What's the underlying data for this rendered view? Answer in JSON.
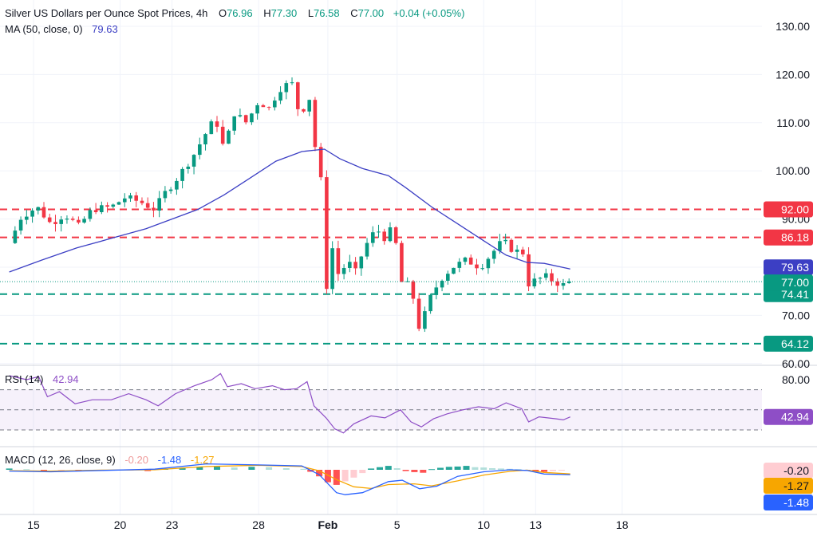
{
  "header": {
    "title": "Silver US Dollars per Ounce Spot Prices, 4h",
    "o_label": "O",
    "o_value": "76.96",
    "h_label": "H",
    "h_value": "77.30",
    "l_label": "L",
    "l_value": "76.58",
    "c_label": "C",
    "c_value": "77.00",
    "change": "+0.04 (+0.05%)",
    "ma_label": "MA (50, close, 0)",
    "ma_value": "79.63"
  },
  "rsi_header": {
    "label": "RSI (14)",
    "value": "42.94"
  },
  "macd_header": {
    "label": "MACD (12, 26, close, 9)",
    "hist": "-0.20",
    "macd": "-1.48",
    "signal": "-1.27"
  },
  "colors": {
    "up": "#089981",
    "down": "#f23645",
    "ma": "#3c3fc4",
    "rsi": "#8e4ec6",
    "macd": "#2962ff",
    "signal": "#f7a600",
    "hline_red": "#f23645",
    "hline_green": "#089981",
    "grid": "#f0f3fa"
  },
  "chart_data": [
    {
      "type": "candlestick",
      "title": "Silver US Dollars per Ounce Spot Prices, 4h",
      "ylim": [
        60,
        130
      ],
      "y_ticks": [
        "130.00",
        "120.00",
        "110.00",
        "100.00",
        "90.00",
        "80.00",
        "70.00",
        "60.00"
      ],
      "y_tick_values": [
        130,
        120,
        110,
        100,
        90,
        80,
        70,
        60
      ],
      "x_ticks": [
        {
          "label": "15",
          "t": 15
        },
        {
          "label": "20",
          "t": 20
        },
        {
          "label": "23",
          "t": 23
        },
        {
          "label": "28",
          "t": 28
        },
        {
          "label": "Feb",
          "t": 32
        },
        {
          "label": "5",
          "t": 36
        },
        {
          "label": "10",
          "t": 41
        },
        {
          "label": "13",
          "t": 44
        },
        {
          "label": "18",
          "t": 49
        }
      ],
      "horizontal_levels": [
        {
          "label": "92.00",
          "value": 92.0,
          "color": "red"
        },
        {
          "label": "86.18",
          "value": 86.18,
          "color": "red"
        },
        {
          "label": "74.41",
          "value": 74.41,
          "color": "green"
        },
        {
          "label": "64.12",
          "value": 64.12,
          "color": "green"
        }
      ],
      "price_tags": [
        {
          "label": "79.63",
          "value": 79.63,
          "kind": "ma"
        },
        {
          "label": "77.00",
          "value": 77.0,
          "kind": "last"
        }
      ],
      "close_path": [
        {
          "t": 13.6,
          "v": 85.0
        },
        {
          "t": 14.3,
          "v": 90.5
        },
        {
          "t": 15.2,
          "v": 92.5
        },
        {
          "t": 16.0,
          "v": 89.0
        },
        {
          "t": 16.8,
          "v": 91.0
        },
        {
          "t": 17.6,
          "v": 88.5
        },
        {
          "t": 18.4,
          "v": 92.0
        },
        {
          "t": 19.5,
          "v": 92.5
        },
        {
          "t": 20.3,
          "v": 94.5
        },
        {
          "t": 21.2,
          "v": 93.5
        },
        {
          "t": 22.0,
          "v": 92.0
        },
        {
          "t": 22.5,
          "v": 95.0
        },
        {
          "t": 23.3,
          "v": 98.5
        },
        {
          "t": 24.2,
          "v": 103.0
        },
        {
          "t": 24.9,
          "v": 107.5
        },
        {
          "t": 25.5,
          "v": 111.0
        },
        {
          "t": 26.0,
          "v": 104.5
        },
        {
          "t": 26.6,
          "v": 112.0
        },
        {
          "t": 27.3,
          "v": 110.0
        },
        {
          "t": 28.0,
          "v": 114.5
        },
        {
          "t": 28.6,
          "v": 113.0
        },
        {
          "t": 29.2,
          "v": 117.0
        },
        {
          "t": 29.9,
          "v": 118.5
        },
        {
          "t": 30.4,
          "v": 111.0
        },
        {
          "t": 30.9,
          "v": 116.0
        },
        {
          "t": 31.3,
          "v": 104.0
        },
        {
          "t": 31.7,
          "v": 96.0
        },
        {
          "t": 31.95,
          "v": 74.5
        },
        {
          "t": 32.3,
          "v": 85.0
        },
        {
          "t": 32.7,
          "v": 76.5
        },
        {
          "t": 33.1,
          "v": 82.5
        },
        {
          "t": 33.5,
          "v": 78.0
        },
        {
          "t": 34.1,
          "v": 84.0
        },
        {
          "t": 34.8,
          "v": 88.0
        },
        {
          "t": 35.3,
          "v": 86.0
        },
        {
          "t": 35.8,
          "v": 88.5
        },
        {
          "t": 36.2,
          "v": 77.0
        },
        {
          "t": 36.8,
          "v": 76.0
        },
        {
          "t": 37.3,
          "v": 67.0
        },
        {
          "t": 37.9,
          "v": 73.5
        },
        {
          "t": 38.5,
          "v": 77.5
        },
        {
          "t": 39.2,
          "v": 80.0
        },
        {
          "t": 40.0,
          "v": 81.5
        },
        {
          "t": 40.8,
          "v": 80.0
        },
        {
          "t": 41.5,
          "v": 83.0
        },
        {
          "t": 42.1,
          "v": 85.5
        },
        {
          "t": 42.7,
          "v": 83.5
        },
        {
          "t": 43.3,
          "v": 83.0
        },
        {
          "t": 43.6,
          "v": 76.5
        },
        {
          "t": 44.1,
          "v": 77.5
        },
        {
          "t": 44.6,
          "v": 78.0
        },
        {
          "t": 45.1,
          "v": 77.0
        },
        {
          "t": 45.6,
          "v": 76.3
        },
        {
          "t": 46.0,
          "v": 77.0
        }
      ],
      "ma_path": [
        {
          "t": 13.6,
          "v": 79.0
        },
        {
          "t": 15.5,
          "v": 81.5
        },
        {
          "t": 17.5,
          "v": 84.0
        },
        {
          "t": 19.5,
          "v": 86.0
        },
        {
          "t": 21.5,
          "v": 88.0
        },
        {
          "t": 23.0,
          "v": 90.0
        },
        {
          "t": 24.5,
          "v": 92.0
        },
        {
          "t": 26.0,
          "v": 95.0
        },
        {
          "t": 27.5,
          "v": 98.5
        },
        {
          "t": 29.0,
          "v": 102.0
        },
        {
          "t": 30.5,
          "v": 104.0
        },
        {
          "t": 31.8,
          "v": 104.5
        },
        {
          "t": 32.7,
          "v": 102.5
        },
        {
          "t": 34.0,
          "v": 100.5
        },
        {
          "t": 35.5,
          "v": 99.0
        },
        {
          "t": 36.5,
          "v": 96.5
        },
        {
          "t": 38.0,
          "v": 92.5
        },
        {
          "t": 39.5,
          "v": 89.0
        },
        {
          "t": 41.0,
          "v": 85.5
        },
        {
          "t": 42.3,
          "v": 82.5
        },
        {
          "t": 43.5,
          "v": 81.0
        },
        {
          "t": 44.5,
          "v": 80.8
        },
        {
          "t": 46.0,
          "v": 79.63
        }
      ]
    },
    {
      "type": "line",
      "title": "RSI (14)",
      "ylim": [
        20,
        100
      ],
      "y_ticks": [
        "80.00"
      ],
      "levels": [
        70,
        50,
        30
      ],
      "last_value": "42.94",
      "path": [
        {
          "t": 13.6,
          "v": 84
        },
        {
          "t": 14.6,
          "v": 80
        },
        {
          "t": 15.3,
          "v": 83
        },
        {
          "t": 15.8,
          "v": 63
        },
        {
          "t": 16.5,
          "v": 68
        },
        {
          "t": 17.4,
          "v": 56
        },
        {
          "t": 18.4,
          "v": 60
        },
        {
          "t": 19.5,
          "v": 60
        },
        {
          "t": 20.5,
          "v": 66
        },
        {
          "t": 21.5,
          "v": 60
        },
        {
          "t": 22.2,
          "v": 54
        },
        {
          "t": 23.2,
          "v": 66
        },
        {
          "t": 24.3,
          "v": 74
        },
        {
          "t": 25.3,
          "v": 80
        },
        {
          "t": 25.8,
          "v": 86
        },
        {
          "t": 26.2,
          "v": 73
        },
        {
          "t": 27.0,
          "v": 76
        },
        {
          "t": 27.8,
          "v": 71
        },
        {
          "t": 28.8,
          "v": 74
        },
        {
          "t": 29.5,
          "v": 70
        },
        {
          "t": 30.2,
          "v": 71
        },
        {
          "t": 30.8,
          "v": 78
        },
        {
          "t": 31.2,
          "v": 54
        },
        {
          "t": 31.9,
          "v": 42
        },
        {
          "t": 32.4,
          "v": 31
        },
        {
          "t": 32.9,
          "v": 27
        },
        {
          "t": 33.5,
          "v": 36
        },
        {
          "t": 34.5,
          "v": 44
        },
        {
          "t": 35.3,
          "v": 42
        },
        {
          "t": 36.2,
          "v": 50
        },
        {
          "t": 36.8,
          "v": 38
        },
        {
          "t": 37.4,
          "v": 33
        },
        {
          "t": 38.1,
          "v": 41
        },
        {
          "t": 38.9,
          "v": 46
        },
        {
          "t": 39.8,
          "v": 50
        },
        {
          "t": 40.7,
          "v": 53
        },
        {
          "t": 41.6,
          "v": 51
        },
        {
          "t": 42.3,
          "v": 57
        },
        {
          "t": 43.2,
          "v": 51
        },
        {
          "t": 43.6,
          "v": 38
        },
        {
          "t": 44.2,
          "v": 43
        },
        {
          "t": 45.2,
          "v": 41
        },
        {
          "t": 45.6,
          "v": 40
        },
        {
          "t": 46.0,
          "v": 42.94
        }
      ]
    },
    {
      "type": "bar",
      "title": "MACD (12, 26, close, 9)",
      "ylim": [
        -9,
        4
      ],
      "tags": [
        "-0.20",
        "-1.27",
        "-1.48"
      ],
      "histogram": [
        {
          "t": 13.6,
          "v": 0.4
        },
        {
          "t": 14.6,
          "v": 0.2
        },
        {
          "t": 15.6,
          "v": -0.3
        },
        {
          "t": 16.6,
          "v": -0.2
        },
        {
          "t": 17.6,
          "v": -0.5
        },
        {
          "t": 18.6,
          "v": -0.3
        },
        {
          "t": 19.6,
          "v": -0.2
        },
        {
          "t": 20.6,
          "v": -0.1
        },
        {
          "t": 21.6,
          "v": -0.4
        },
        {
          "t": 22.6,
          "v": 0.3
        },
        {
          "t": 23.6,
          "v": 0.6
        },
        {
          "t": 24.6,
          "v": 0.9
        },
        {
          "t": 25.6,
          "v": 1.1
        },
        {
          "t": 26.6,
          "v": 0.7
        },
        {
          "t": 27.6,
          "v": 0.9
        },
        {
          "t": 28.6,
          "v": 0.8
        },
        {
          "t": 29.6,
          "v": 0.5
        },
        {
          "t": 30.6,
          "v": 0.3
        },
        {
          "t": 31.0,
          "v": -0.6
        },
        {
          "t": 31.5,
          "v": -2.0
        },
        {
          "t": 32.0,
          "v": -3.8
        },
        {
          "t": 32.5,
          "v": -4.6
        },
        {
          "t": 33.0,
          "v": -3.5
        },
        {
          "t": 33.5,
          "v": -2.4
        },
        {
          "t": 34.0,
          "v": -1.0
        },
        {
          "t": 34.5,
          "v": 0.4
        },
        {
          "t": 35.0,
          "v": 0.8
        },
        {
          "t": 35.5,
          "v": 1.2
        },
        {
          "t": 36.0,
          "v": 0.5
        },
        {
          "t": 36.5,
          "v": -0.4
        },
        {
          "t": 37.0,
          "v": -0.7
        },
        {
          "t": 37.5,
          "v": -0.9
        },
        {
          "t": 38.0,
          "v": 0.2
        },
        {
          "t": 38.5,
          "v": 0.6
        },
        {
          "t": 39.0,
          "v": 0.9
        },
        {
          "t": 39.5,
          "v": 1.0
        },
        {
          "t": 40.0,
          "v": 1.2
        },
        {
          "t": 40.5,
          "v": 0.8
        },
        {
          "t": 41.0,
          "v": 0.7
        },
        {
          "t": 41.5,
          "v": 0.5
        },
        {
          "t": 42.0,
          "v": 0.4
        },
        {
          "t": 42.5,
          "v": 0.3
        },
        {
          "t": 43.0,
          "v": 0.2
        },
        {
          "t": 43.5,
          "v": -0.3
        },
        {
          "t": 44.0,
          "v": -0.5
        },
        {
          "t": 44.5,
          "v": -0.6
        },
        {
          "t": 45.0,
          "v": -0.4
        },
        {
          "t": 45.5,
          "v": -0.2
        }
      ],
      "macd_line": [
        {
          "t": 13.6,
          "v": -0.4
        },
        {
          "t": 16.0,
          "v": -0.6
        },
        {
          "t": 19.0,
          "v": -0.2
        },
        {
          "t": 22.0,
          "v": 0.2
        },
        {
          "t": 25.0,
          "v": 1.8
        },
        {
          "t": 28.0,
          "v": 1.5
        },
        {
          "t": 30.5,
          "v": 1.2
        },
        {
          "t": 31.5,
          "v": -1.5
        },
        {
          "t": 32.5,
          "v": -7.0
        },
        {
          "t": 33.0,
          "v": -7.6
        },
        {
          "t": 34.0,
          "v": -7.0
        },
        {
          "t": 35.5,
          "v": -3.6
        },
        {
          "t": 36.3,
          "v": -3.2
        },
        {
          "t": 37.3,
          "v": -5.8
        },
        {
          "t": 38.3,
          "v": -5.0
        },
        {
          "t": 39.5,
          "v": -2.0
        },
        {
          "t": 41.0,
          "v": -0.6
        },
        {
          "t": 42.5,
          "v": 0.0
        },
        {
          "t": 43.5,
          "v": -0.2
        },
        {
          "t": 44.5,
          "v": -1.3
        },
        {
          "t": 46.0,
          "v": -1.48
        }
      ],
      "signal_line": [
        {
          "t": 13.6,
          "v": -0.3
        },
        {
          "t": 16.0,
          "v": -0.4
        },
        {
          "t": 19.0,
          "v": -0.1
        },
        {
          "t": 22.0,
          "v": 0.0
        },
        {
          "t": 25.0,
          "v": 1.0
        },
        {
          "t": 28.0,
          "v": 1.4
        },
        {
          "t": 30.5,
          "v": 1.0
        },
        {
          "t": 31.5,
          "v": -0.3
        },
        {
          "t": 32.5,
          "v": -3.0
        },
        {
          "t": 33.5,
          "v": -5.2
        },
        {
          "t": 34.5,
          "v": -5.7
        },
        {
          "t": 35.5,
          "v": -4.5
        },
        {
          "t": 37.0,
          "v": -4.3
        },
        {
          "t": 38.0,
          "v": -4.9
        },
        {
          "t": 39.5,
          "v": -3.4
        },
        {
          "t": 41.0,
          "v": -1.6
        },
        {
          "t": 42.5,
          "v": -0.5
        },
        {
          "t": 43.5,
          "v": -0.1
        },
        {
          "t": 44.5,
          "v": -0.8
        },
        {
          "t": 46.0,
          "v": -1.27
        }
      ]
    }
  ]
}
